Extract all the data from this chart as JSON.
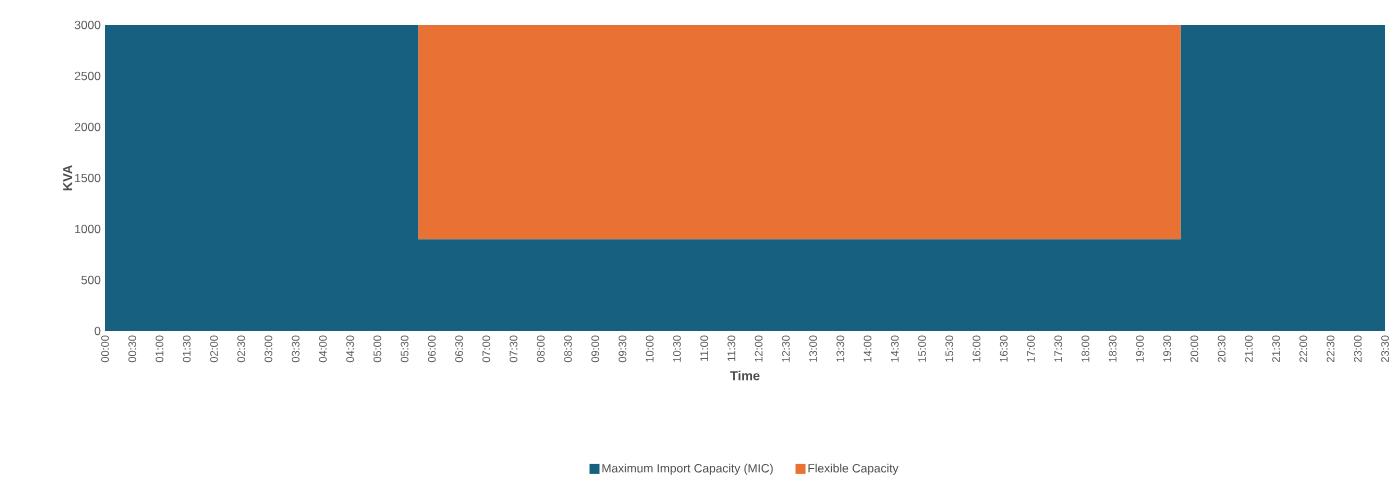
{
  "chart_data": {
    "type": "area",
    "stacked": true,
    "xlabel": "Time",
    "ylabel": "KVA",
    "categories": [
      "00:00",
      "00:30",
      "01:00",
      "01:30",
      "02:00",
      "02:30",
      "03:00",
      "03:30",
      "04:00",
      "04:30",
      "05:00",
      "05:30",
      "06:00",
      "06:30",
      "07:00",
      "07:30",
      "08:00",
      "08:30",
      "09:00",
      "09:30",
      "10:00",
      "10:30",
      "11:00",
      "11:30",
      "12:00",
      "12:30",
      "13:00",
      "13:30",
      "14:00",
      "14:30",
      "15:00",
      "15:30",
      "16:00",
      "16:30",
      "17:00",
      "17:30",
      "18:00",
      "18:30",
      "19:00",
      "19:30",
      "20:00",
      "20:30",
      "21:00",
      "21:30",
      "22:00",
      "22:30",
      "23:00",
      "23:30"
    ],
    "series": [
      {
        "name": "Maximum Import Capacity (MIC)",
        "color": "#17607f",
        "values": [
          3000,
          3000,
          3000,
          3000,
          3000,
          3000,
          3000,
          3000,
          3000,
          3000,
          3000,
          3000,
          900,
          900,
          900,
          900,
          900,
          900,
          900,
          900,
          900,
          900,
          900,
          900,
          900,
          900,
          900,
          900,
          900,
          900,
          900,
          900,
          900,
          900,
          900,
          900,
          900,
          900,
          900,
          900,
          3000,
          3000,
          3000,
          3000,
          3000,
          3000,
          3000,
          3000
        ]
      },
      {
        "name": "Flexible Capacity",
        "color": "#e87133",
        "values": [
          0,
          0,
          0,
          0,
          0,
          0,
          0,
          0,
          0,
          0,
          0,
          0,
          2100,
          2100,
          2100,
          2100,
          2100,
          2100,
          2100,
          2100,
          2100,
          2100,
          2100,
          2100,
          2100,
          2100,
          2100,
          2100,
          2100,
          2100,
          2100,
          2100,
          2100,
          2100,
          2100,
          2100,
          2100,
          2100,
          2100,
          2100,
          0,
          0,
          0,
          0,
          0,
          0,
          0,
          0
        ]
      }
    ],
    "ylim": [
      0,
      3000
    ],
    "yticks": [
      0,
      500,
      1000,
      1500,
      2000,
      2500,
      3000
    ],
    "grid": false,
    "legend": "bottom"
  }
}
